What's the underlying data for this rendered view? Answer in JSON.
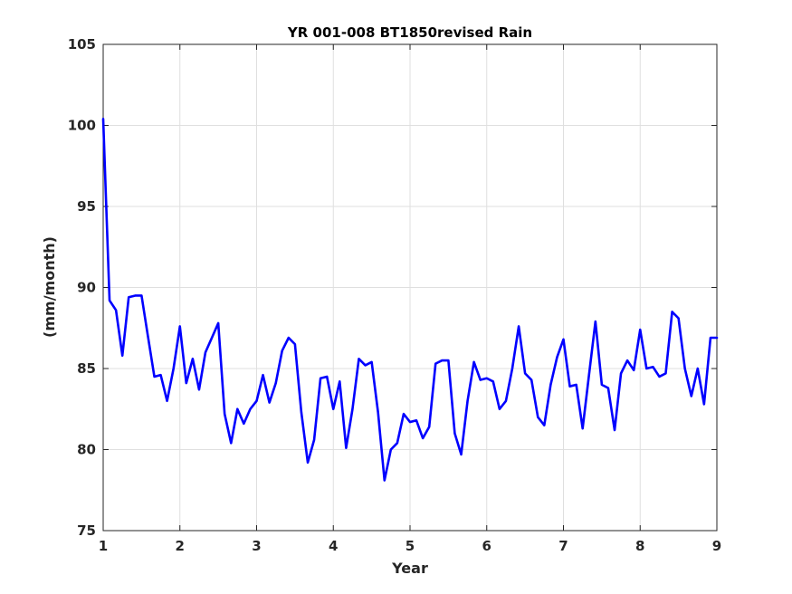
{
  "chart_data": {
    "type": "line",
    "title": "YR 001-008 BT1850revised Rain",
    "xlabel": "Year",
    "ylabel": "(mm/month)",
    "xlim": [
      1,
      9
    ],
    "ylim": [
      75,
      105
    ],
    "xticks": [
      1,
      2,
      3,
      4,
      5,
      6,
      7,
      8,
      9
    ],
    "yticks": [
      75,
      80,
      85,
      90,
      95,
      100,
      105
    ],
    "grid": true,
    "legend": "none",
    "line_color": "#0000ff",
    "series": [
      {
        "x": [
          1.0,
          1.083,
          1.167,
          1.25,
          1.333,
          1.417,
          1.5,
          1.583,
          1.667,
          1.75,
          1.833,
          1.917,
          2.0,
          2.083,
          2.167,
          2.25,
          2.333,
          2.417,
          2.5,
          2.583,
          2.667,
          2.75,
          2.833,
          2.917,
          3.0,
          3.083,
          3.167,
          3.25,
          3.333,
          3.417,
          3.5,
          3.583,
          3.667,
          3.75,
          3.833,
          3.917,
          4.0,
          4.083,
          4.167,
          4.25,
          4.333,
          4.417,
          4.5,
          4.583,
          4.667,
          4.75,
          4.833,
          4.917,
          5.0,
          5.083,
          5.167,
          5.25,
          5.333,
          5.417,
          5.5,
          5.583,
          5.667,
          5.75,
          5.833,
          5.917,
          6.0,
          6.083,
          6.167,
          6.25,
          6.333,
          6.417,
          6.5,
          6.583,
          6.667,
          6.75,
          6.833,
          6.917,
          7.0,
          7.083,
          7.167,
          7.25,
          7.333,
          7.417,
          7.5,
          7.583,
          7.667,
          7.75,
          7.833,
          7.917,
          8.0,
          8.083,
          8.167,
          8.25,
          8.333,
          8.417,
          8.5,
          8.583,
          8.667,
          8.75,
          8.833,
          8.917,
          9.0
        ],
        "values": [
          100.4,
          89.2,
          88.6,
          85.8,
          89.4,
          89.5,
          89.5,
          87.0,
          84.5,
          84.6,
          83.0,
          85.0,
          87.6,
          84.1,
          85.6,
          83.7,
          86.0,
          86.9,
          87.8,
          82.2,
          80.4,
          82.5,
          81.6,
          82.5,
          83.0,
          84.6,
          82.9,
          84.1,
          86.1,
          86.9,
          86.5,
          82.3,
          79.2,
          80.6,
          84.4,
          84.5,
          82.5,
          84.2,
          80.1,
          82.5,
          85.6,
          85.2,
          85.4,
          82.3,
          78.1,
          80.0,
          80.4,
          82.2,
          81.7,
          81.8,
          80.7,
          81.4,
          85.3,
          85.5,
          85.5,
          81.0,
          79.7,
          83.0,
          85.4,
          84.3,
          84.4,
          84.2,
          82.5,
          83.0,
          85.0,
          87.6,
          84.7,
          84.3,
          82.0,
          81.5,
          84.0,
          85.7,
          86.8,
          83.9,
          84.0,
          81.3,
          84.6,
          87.9,
          84.0,
          83.8,
          81.2,
          84.7,
          85.5,
          84.9,
          87.4,
          85.0,
          85.1,
          84.5,
          84.7,
          88.5,
          88.1,
          85.0,
          83.3,
          85.0,
          82.8,
          86.9,
          86.9
        ]
      }
    ]
  }
}
